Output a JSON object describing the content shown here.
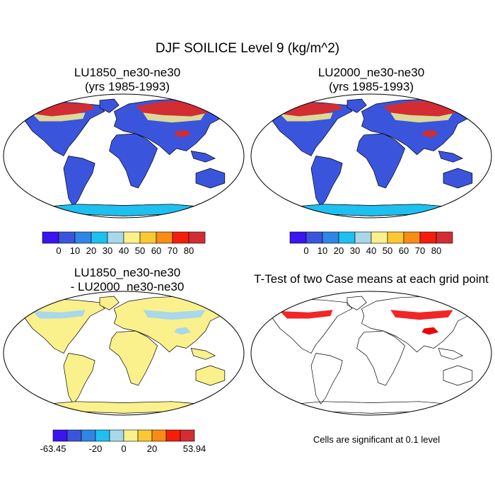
{
  "title": "DJF SOILICE Level 9 (kg/m^2)",
  "panels": [
    {
      "id": "lu1850",
      "title_line1": "LU1850_ne30-ne30",
      "title_line2": "(yrs 1985-1993)"
    },
    {
      "id": "lu2000",
      "title_line1": "LU2000_ne30-ne30",
      "title_line2": "(yrs 1985-1993)"
    },
    {
      "id": "diff",
      "title_line1": "LU1850_ne30-ne30",
      "title_line2": "- LU2000_ne30-ne30"
    },
    {
      "id": "ttest",
      "title_line1": "T-Test of two Case means at each grid point",
      "title_line2": ""
    }
  ],
  "colorbars": [
    {
      "id": "abs",
      "colors": [
        "#3b14f0",
        "#3a55dc",
        "#2f86e6",
        "#1ec0f0",
        "#a8d8ea",
        "#faf08c",
        "#fac832",
        "#f88c14",
        "#f51e0a",
        "#d22d32"
      ],
      "labels": [
        "0",
        "10",
        "20",
        "30",
        "40",
        "50",
        "60",
        "70",
        "80"
      ]
    },
    {
      "id": "diff",
      "colors": [
        "#3b14f0",
        "#3a55dc",
        "#2f86e6",
        "#1ec0f0",
        "#a8d8ea",
        "#faf08c",
        "#fac832",
        "#f88c14",
        "#f51e0a",
        "#d22d32"
      ],
      "labels": [
        "-63.45",
        "-20",
        "0",
        "20",
        "53.94"
      ]
    }
  ],
  "significance_note": "Cells are significant at 0.1 level",
  "chart_data": {
    "type": "heatmap",
    "title": "DJF SOILICE Level 9 (kg/m^2)",
    "projection": "Robinson",
    "variable": "SOILICE Level 9",
    "units": "kg/m^2",
    "season": "DJF",
    "fields": [
      {
        "name": "LU1850_ne30-ne30",
        "years": "1985-1993",
        "land_value_typical": 5,
        "high_lat_values": [
          50,
          80
        ],
        "contour_levels": [
          0,
          10,
          20,
          30,
          40,
          50,
          60,
          70,
          80
        ]
      },
      {
        "name": "LU2000_ne30-ne30",
        "years": "1985-1993",
        "land_value_typical": 5,
        "high_lat_values": [
          50,
          80
        ],
        "contour_levels": [
          0,
          10,
          20,
          30,
          40,
          50,
          60,
          70,
          80
        ]
      },
      {
        "name": "LU1850_ne30-ne30 - LU2000_ne30-ne30",
        "min": -63.45,
        "max": 53.94,
        "land_value_typical": 0,
        "high_lat_value": -10,
        "contour_levels": [
          -63.45,
          -20,
          0,
          20,
          53.94
        ]
      },
      {
        "name": "T-Test significance",
        "significance_level": 0.1
      }
    ],
    "colors": {
      "land_low": "#3a55dc",
      "high_lat_hot": "#d22d32",
      "diff_zero": "#faf08c",
      "diff_neg": "#a8d8ea",
      "sig_cells": "#ee0000"
    }
  }
}
